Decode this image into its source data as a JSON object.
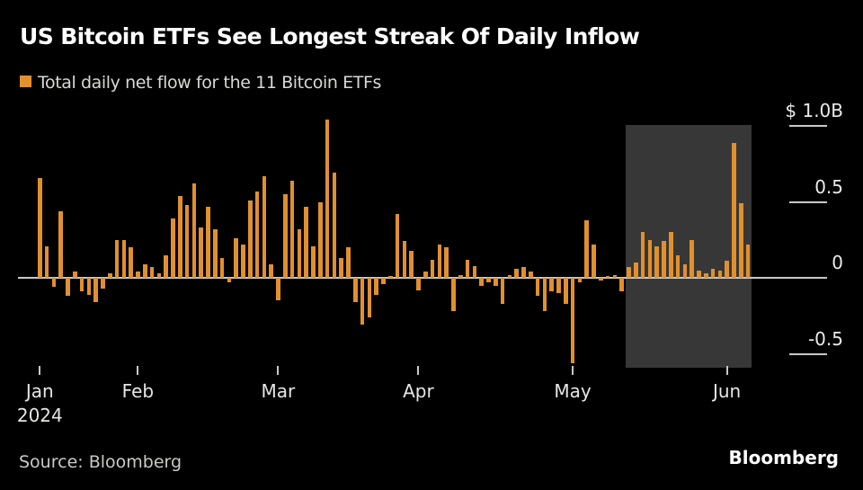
{
  "header": {
    "title": "US Bitcoin ETFs See Longest Streak Of Daily Inflow",
    "legend_label": "Total daily net flow for the 11 Bitcoin ETFs"
  },
  "footer": {
    "source_label": "Source: Bloomberg",
    "brand": "Bloomberg"
  },
  "colors": {
    "background": "#000000",
    "bar": "#E1902E",
    "highlight_region": "#373737",
    "axis_line": "#C8C8C6",
    "axis_text": "#EAEAE8",
    "title_text": "#FFFFFF",
    "legend_text": "#D8D8D6"
  },
  "chart_data": {
    "type": "bar",
    "title": "US Bitcoin ETFs See Longest Streak Of Daily Inflow",
    "series_name": "Total daily net flow for the 11 Bitcoin ETFs",
    "unit": "billions of US dollars per trading day",
    "ylabel": "",
    "xlabel": "",
    "grid": false,
    "legend_position": "top-left",
    "y_axis": {
      "ticks": [
        {
          "label": "$ 1.0B",
          "value": 1.0
        },
        {
          "label": "0.5",
          "value": 0.5
        },
        {
          "label": "0",
          "value": 0
        },
        {
          "label": "-0.5",
          "value": -0.5
        }
      ],
      "range": [
        -0.75,
        1.2
      ]
    },
    "x_axis": {
      "year_label": "2024",
      "months": [
        {
          "label": "Jan",
          "bar_index": 0
        },
        {
          "label": "Feb",
          "bar_index": 14
        },
        {
          "label": "Mar",
          "bar_index": 34
        },
        {
          "label": "Apr",
          "bar_index": 54
        },
        {
          "label": "May",
          "bar_index": 76
        },
        {
          "label": "Jun",
          "bar_index": 98
        }
      ]
    },
    "values": [
      0.66,
      0.21,
      -0.06,
      0.44,
      -0.12,
      0.04,
      -0.09,
      -0.11,
      -0.16,
      -0.07,
      0.03,
      0.25,
      0.25,
      0.2,
      0.04,
      0.09,
      0.07,
      0.03,
      0.15,
      0.39,
      0.54,
      0.48,
      0.62,
      0.33,
      0.47,
      0.32,
      0.13,
      -0.03,
      0.26,
      0.22,
      0.51,
      0.57,
      0.67,
      0.09,
      -0.15,
      0.55,
      0.64,
      0.32,
      0.47,
      0.21,
      0.5,
      1.04,
      0.69,
      0.13,
      0.2,
      -0.16,
      -0.31,
      -0.26,
      -0.11,
      -0.04,
      0.01,
      0.42,
      0.24,
      0.18,
      -0.08,
      0.04,
      0.12,
      0.22,
      0.2,
      -0.22,
      0.02,
      0.12,
      0.08,
      -0.05,
      -0.03,
      -0.05,
      -0.17,
      0.02,
      0.06,
      0.07,
      0.04,
      -0.12,
      -0.22,
      -0.09,
      -0.1,
      -0.17,
      -0.56,
      -0.03,
      0.38,
      0.22,
      -0.02,
      0.01,
      0.02,
      -0.09,
      0.07,
      0.1,
      0.3,
      0.25,
      0.21,
      0.24,
      0.3,
      0.15,
      0.09,
      0.25,
      0.05,
      0.03,
      0.06,
      0.05,
      0.11,
      0.89,
      0.49,
      0.22
    ],
    "highlight": {
      "start_index": 84,
      "end_index": 101,
      "meaning": "record streak of consecutive daily inflows",
      "color": "#373737"
    }
  }
}
